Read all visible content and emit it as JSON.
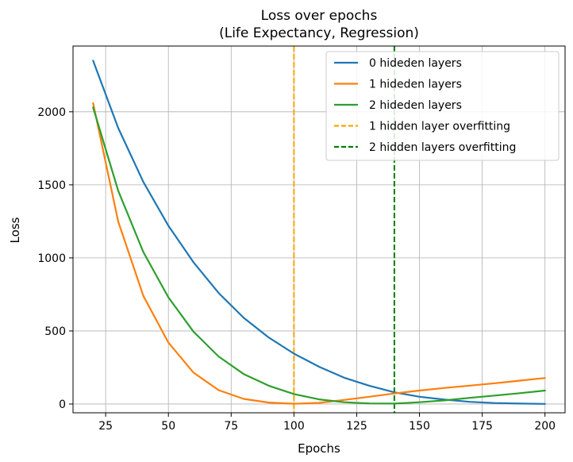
{
  "chart_data": {
    "type": "line",
    "title": "Loss over epochs",
    "subtitle": "(Life Expectancy, Regression)",
    "xlabel": "Epochs",
    "ylabel": "Loss",
    "xlim": [
      12,
      208
    ],
    "ylim": [
      -60,
      2450
    ],
    "x_ticks": [
      25,
      50,
      75,
      100,
      125,
      150,
      175,
      200
    ],
    "y_ticks": [
      0,
      500,
      1000,
      1500,
      2000
    ],
    "grid": true,
    "legend_position": "top-right",
    "x": [
      20,
      30,
      40,
      50,
      60,
      70,
      80,
      90,
      100,
      110,
      120,
      130,
      140,
      150,
      160,
      170,
      180,
      190,
      200
    ],
    "series": [
      {
        "name": "0 hideden layers",
        "color": "#1f77b4",
        "style": "solid",
        "values": [
          2350,
          1890,
          1520,
          1220,
          970,
          760,
          590,
          455,
          345,
          255,
          180,
          125,
          80,
          50,
          30,
          15,
          7,
          3,
          1
        ]
      },
      {
        "name": "1 hideden layers",
        "color": "#ff7f0e",
        "style": "solid",
        "values": [
          2060,
          1250,
          740,
          420,
          215,
          95,
          35,
          10,
          2,
          8,
          28,
          50,
          72,
          92,
          110,
          126,
          142,
          160,
          178
        ]
      },
      {
        "name": "2 hideden layers",
        "color": "#2ca02c",
        "style": "solid",
        "values": [
          2030,
          1460,
          1040,
          730,
          495,
          325,
          205,
          125,
          68,
          32,
          12,
          4,
          3,
          12,
          25,
          42,
          58,
          74,
          92
        ]
      }
    ],
    "vlines": [
      {
        "name": "1 hidden layer overfitting",
        "x": 100,
        "color": "#ffa500",
        "style": "dashed"
      },
      {
        "name": "2 hidden layers overfitting",
        "x": 140,
        "color": "#008000",
        "style": "dashed"
      }
    ]
  }
}
